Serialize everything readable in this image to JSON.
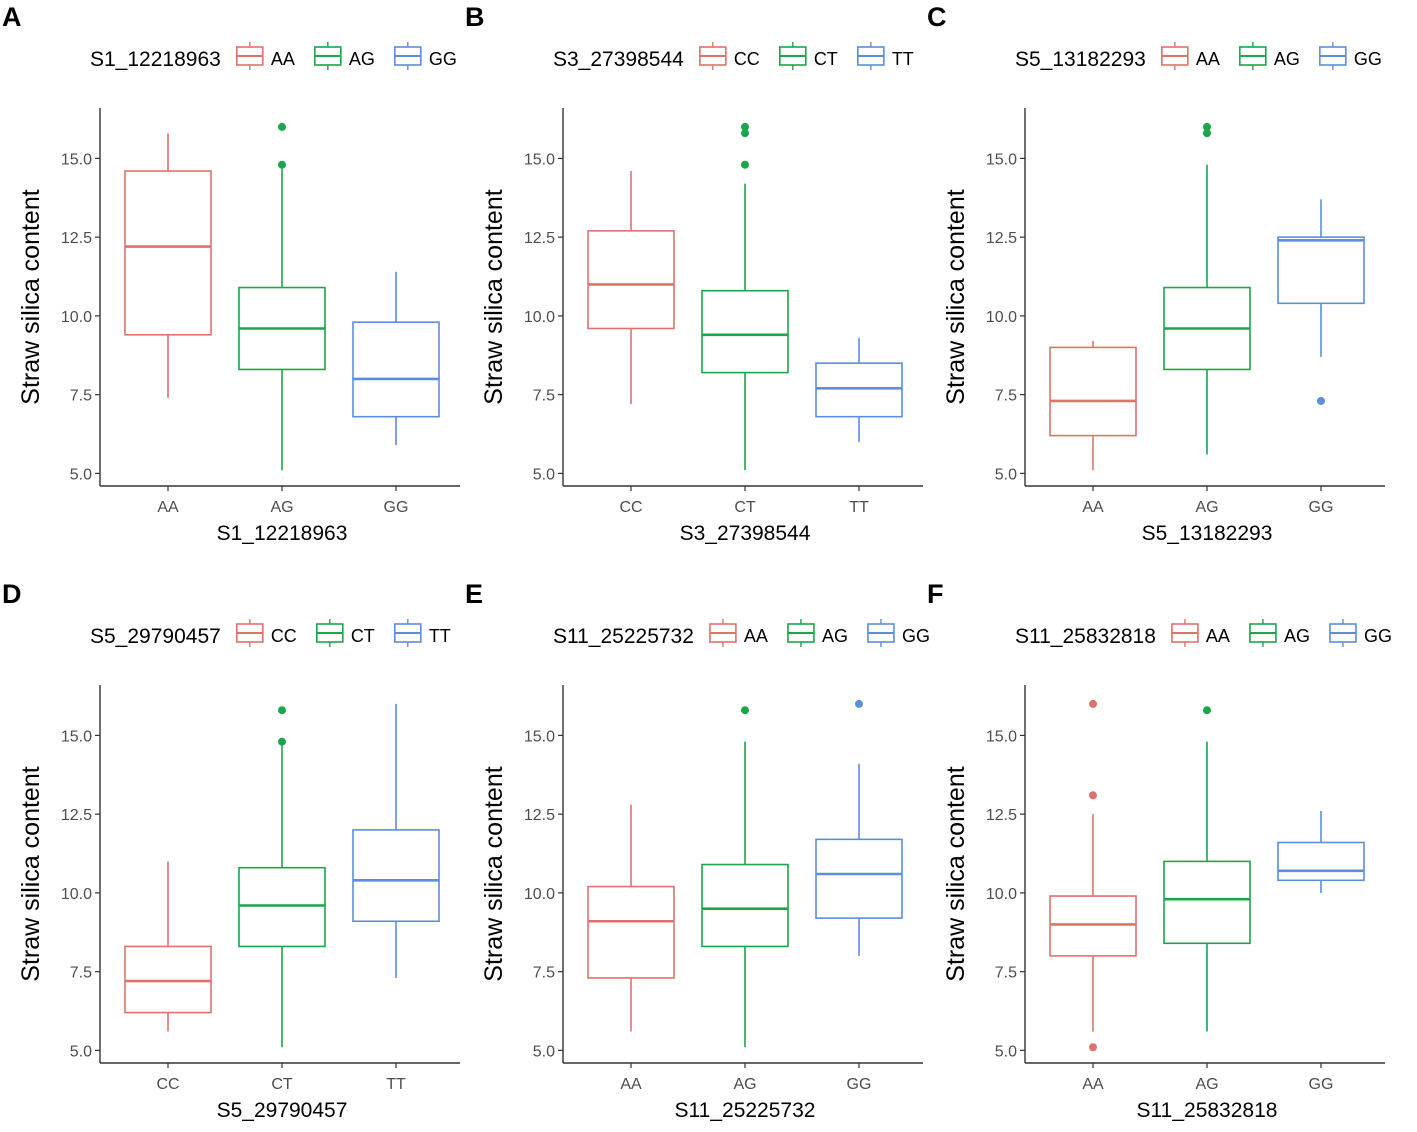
{
  "figure": {
    "y_axis_title": "Straw silica content",
    "y_ticks": [
      "5.0",
      "7.5",
      "10.0",
      "12.5",
      "15.0"
    ],
    "colors": {
      "red": "#E0726A",
      "green": "#1AA64A",
      "blue": "#5B8EDB"
    }
  },
  "chart_data": [
    {
      "type": "boxplot",
      "panel": "A",
      "marker": "S1_12218963",
      "legend_title": "S1_12218963",
      "legend_position": "top",
      "xlabel": "S1_12218963",
      "ylabel": "Straw silica content",
      "ylim": [
        4.6,
        16.6
      ],
      "groups": [
        {
          "label": "AA",
          "color": "red",
          "min": 7.4,
          "q1": 9.4,
          "median": 12.2,
          "q3": 14.6,
          "max": 15.8,
          "outliers": []
        },
        {
          "label": "AG",
          "color": "green",
          "min": 5.1,
          "q1": 8.3,
          "median": 9.6,
          "q3": 10.9,
          "max": 14.7,
          "outliers": [
            14.8,
            16.0
          ]
        },
        {
          "label": "GG",
          "color": "blue",
          "min": 5.9,
          "q1": 6.8,
          "median": 8.0,
          "q3": 9.8,
          "max": 11.4,
          "outliers": []
        }
      ]
    },
    {
      "type": "boxplot",
      "panel": "B",
      "marker": "S3_27398544",
      "legend_title": "S3_27398544",
      "legend_position": "top",
      "xlabel": "S3_27398544",
      "ylabel": "Straw silica content",
      "ylim": [
        4.6,
        16.6
      ],
      "groups": [
        {
          "label": "CC",
          "color": "red",
          "min": 7.2,
          "q1": 9.6,
          "median": 11.0,
          "q3": 12.7,
          "max": 14.6,
          "outliers": []
        },
        {
          "label": "CT",
          "color": "green",
          "min": 5.1,
          "q1": 8.2,
          "median": 9.4,
          "q3": 10.8,
          "max": 14.2,
          "outliers": [
            14.8,
            15.8,
            16.0
          ]
        },
        {
          "label": "TT",
          "color": "blue",
          "min": 6.0,
          "q1": 6.8,
          "median": 7.7,
          "q3": 8.5,
          "max": 9.3,
          "outliers": []
        }
      ]
    },
    {
      "type": "boxplot",
      "panel": "C",
      "marker": "S5_13182293",
      "legend_title": "S5_13182293",
      "legend_position": "top",
      "xlabel": "S5_13182293",
      "ylabel": "Straw silica content",
      "ylim": [
        4.6,
        16.6
      ],
      "groups": [
        {
          "label": "AA",
          "color": "red",
          "min": 5.1,
          "q1": 6.2,
          "median": 7.3,
          "q3": 9.0,
          "max": 9.2,
          "outliers": []
        },
        {
          "label": "AG",
          "color": "green",
          "min": 5.6,
          "q1": 8.3,
          "median": 9.6,
          "q3": 10.9,
          "max": 14.8,
          "outliers": [
            15.8,
            16.0
          ]
        },
        {
          "label": "GG",
          "color": "blue",
          "min": 8.7,
          "q1": 10.4,
          "median": 12.4,
          "q3": 12.5,
          "max": 13.7,
          "outliers": [
            7.3
          ]
        }
      ]
    },
    {
      "type": "boxplot",
      "panel": "D",
      "marker": "S5_29790457",
      "legend_title": "S5_29790457",
      "legend_position": "top",
      "xlabel": "S5_29790457",
      "ylabel": "Straw silica content",
      "ylim": [
        4.6,
        16.6
      ],
      "groups": [
        {
          "label": "CC",
          "color": "red",
          "min": 5.6,
          "q1": 6.2,
          "median": 7.2,
          "q3": 8.3,
          "max": 11.0,
          "outliers": []
        },
        {
          "label": "CT",
          "color": "green",
          "min": 5.1,
          "q1": 8.3,
          "median": 9.6,
          "q3": 10.8,
          "max": 14.7,
          "outliers": [
            14.8,
            15.8
          ]
        },
        {
          "label": "TT",
          "color": "blue",
          "min": 7.3,
          "q1": 9.1,
          "median": 10.4,
          "q3": 12.0,
          "max": 16.0,
          "outliers": []
        }
      ]
    },
    {
      "type": "boxplot",
      "panel": "E",
      "marker": "S11_25225732",
      "legend_title": "S11_25225732",
      "legend_position": "top",
      "xlabel": "S11_25225732",
      "ylabel": "Straw silica content",
      "ylim": [
        4.6,
        16.6
      ],
      "groups": [
        {
          "label": "AA",
          "color": "red",
          "min": 5.6,
          "q1": 7.3,
          "median": 9.1,
          "q3": 10.2,
          "max": 12.8,
          "outliers": []
        },
        {
          "label": "AG",
          "color": "green",
          "min": 5.1,
          "q1": 8.3,
          "median": 9.5,
          "q3": 10.9,
          "max": 14.8,
          "outliers": [
            15.8
          ]
        },
        {
          "label": "GG",
          "color": "blue",
          "min": 8.0,
          "q1": 9.2,
          "median": 10.6,
          "q3": 11.7,
          "max": 14.1,
          "outliers": [
            16.0
          ]
        }
      ]
    },
    {
      "type": "boxplot",
      "panel": "F",
      "marker": "S11_25832818",
      "legend_title": "S11_25832818",
      "legend_position": "top",
      "xlabel": "S11_25832818",
      "ylabel": "Straw silica content",
      "ylim": [
        4.6,
        16.6
      ],
      "groups": [
        {
          "label": "AA",
          "color": "red",
          "min": 5.6,
          "q1": 8.0,
          "median": 9.0,
          "q3": 9.9,
          "max": 12.5,
          "outliers": [
            5.1,
            13.1,
            16.0
          ]
        },
        {
          "label": "AG",
          "color": "green",
          "min": 5.6,
          "q1": 8.4,
          "median": 9.8,
          "q3": 11.0,
          "max": 14.8,
          "outliers": [
            15.8
          ]
        },
        {
          "label": "GG",
          "color": "blue",
          "min": 10.0,
          "q1": 10.4,
          "median": 10.7,
          "q3": 11.6,
          "max": 12.6,
          "outliers": []
        }
      ]
    }
  ]
}
